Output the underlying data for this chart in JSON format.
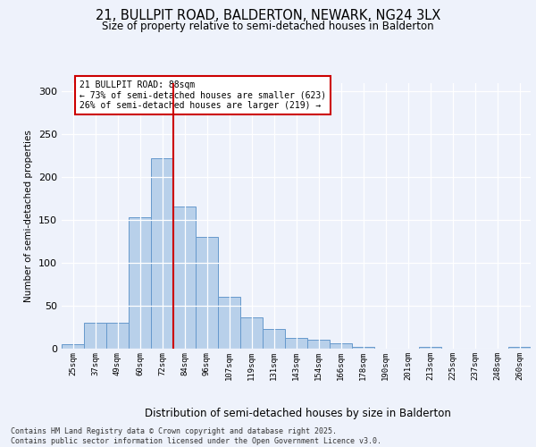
{
  "title1": "21, BULLPIT ROAD, BALDERTON, NEWARK, NG24 3LX",
  "title2": "Size of property relative to semi-detached houses in Balderton",
  "xlabel": "Distribution of semi-detached houses by size in Balderton",
  "ylabel": "Number of semi-detached properties",
  "categories": [
    "25sqm",
    "37sqm",
    "49sqm",
    "60sqm",
    "72sqm",
    "84sqm",
    "96sqm",
    "107sqm",
    "119sqm",
    "131sqm",
    "143sqm",
    "154sqm",
    "166sqm",
    "178sqm",
    "190sqm",
    "201sqm",
    "213sqm",
    "225sqm",
    "237sqm",
    "248sqm",
    "260sqm"
  ],
  "values": [
    5,
    30,
    30,
    153,
    222,
    166,
    130,
    60,
    36,
    23,
    13,
    10,
    6,
    2,
    0,
    0,
    2,
    0,
    0,
    0,
    2
  ],
  "bar_color": "#b8d0ea",
  "bar_edge_color": "#6699cc",
  "vline_x_index": 5,
  "vline_color": "#cc0000",
  "annotation_text": "21 BULLPIT ROAD: 88sqm\n← 73% of semi-detached houses are smaller (623)\n26% of semi-detached houses are larger (219) →",
  "annotation_box_color": "#ffffff",
  "annotation_box_edge": "#cc0000",
  "footer": "Contains HM Land Registry data © Crown copyright and database right 2025.\nContains public sector information licensed under the Open Government Licence v3.0.",
  "ylim": [
    0,
    310
  ],
  "yticks": [
    0,
    50,
    100,
    150,
    200,
    250,
    300
  ],
  "background_color": "#eef2fb",
  "grid_color": "#ffffff"
}
